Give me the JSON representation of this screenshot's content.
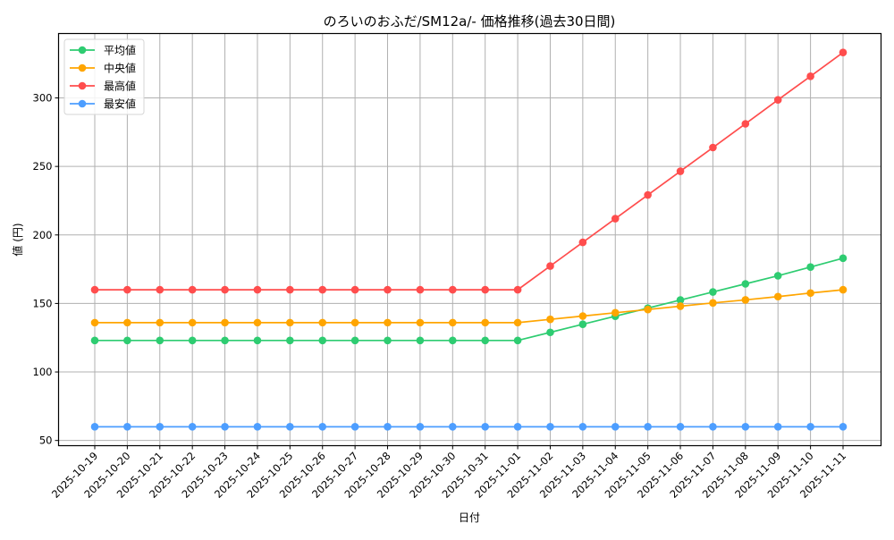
{
  "chart_data": {
    "type": "line",
    "title": "のろいのおふだ/SM12a/- 価格推移(過去30日間)",
    "xlabel": "日付",
    "ylabel": "値 (円)",
    "ylim": [
      46.2,
      347
    ],
    "yticks": [
      50,
      100,
      150,
      200,
      250,
      300
    ],
    "grid": true,
    "legend_position": "upper left",
    "categories": [
      "2025-10-19",
      "2025-10-20",
      "2025-10-21",
      "2025-10-22",
      "2025-10-23",
      "2025-10-24",
      "2025-10-25",
      "2025-10-26",
      "2025-10-27",
      "2025-10-28",
      "2025-10-29",
      "2025-10-30",
      "2025-10-31",
      "2025-11-01",
      "2025-11-02",
      "2025-11-03",
      "2025-11-04",
      "2025-11-05",
      "2025-11-06",
      "2025-11-07",
      "2025-11-08",
      "2025-11-09",
      "2025-11-10",
      "2025-11-11"
    ],
    "series": [
      {
        "name": "平均値",
        "color": "#2ecc71",
        "values": [
          123,
          123,
          123,
          123,
          123,
          123,
          123,
          123,
          123,
          123,
          123,
          123,
          123,
          123,
          128.9,
          134.8,
          140.7,
          146.6,
          152.5,
          158.4,
          164.3,
          170.2,
          176.6,
          183
        ]
      },
      {
        "name": "中央値",
        "color": "#ffa500",
        "values": [
          136,
          136,
          136,
          136,
          136,
          136,
          136,
          136,
          136,
          136,
          136,
          136,
          136,
          136,
          138.4,
          140.8,
          143.2,
          145.6,
          148,
          150.4,
          152.6,
          155,
          157.6,
          160
        ]
      },
      {
        "name": "最高値",
        "color": "#ff4d4d",
        "values": [
          160,
          160,
          160,
          160,
          160,
          160,
          160,
          160,
          160,
          160,
          160,
          160,
          160,
          160,
          177.3,
          194.6,
          211.9,
          229.2,
          246.5,
          263.8,
          281.1,
          298.6,
          315.8,
          333.2
        ]
      },
      {
        "name": "最安値",
        "color": "#4d9eff",
        "values": [
          60,
          60,
          60,
          60,
          60,
          60,
          60,
          60,
          60,
          60,
          60,
          60,
          60,
          60,
          60,
          60,
          60,
          60,
          60,
          60,
          60,
          60,
          60,
          60
        ]
      }
    ]
  }
}
